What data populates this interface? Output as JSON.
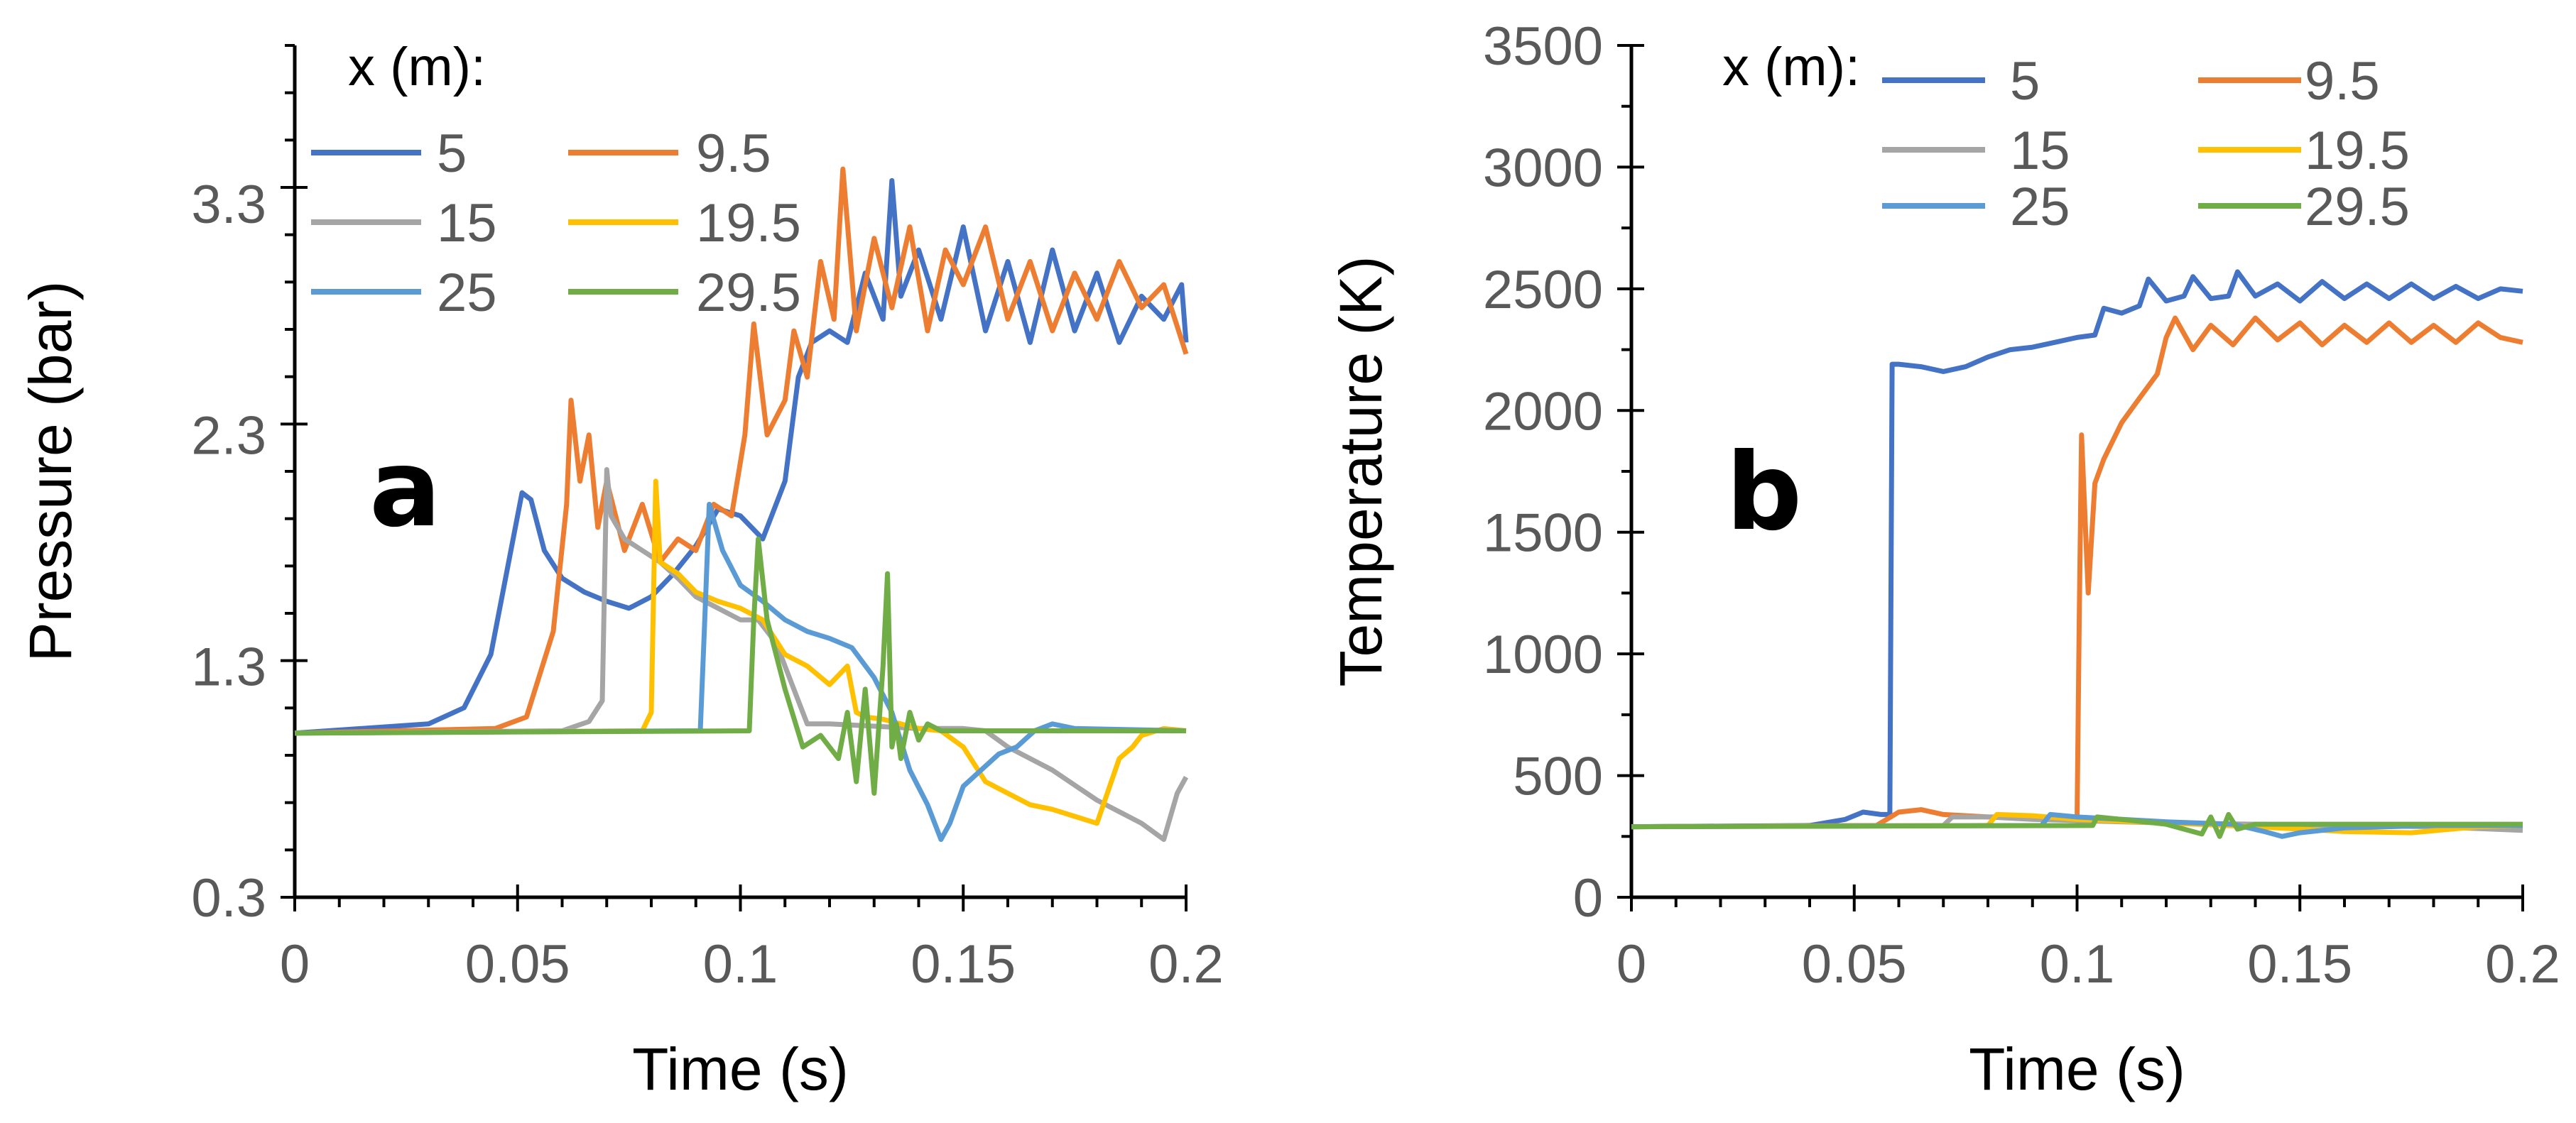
{
  "colors": {
    "axis": "#000000",
    "tick_label": "#595959",
    "series": {
      "5": "#4472C4",
      "9.5": "#ED7D31",
      "15": "#A5A5A5",
      "19.5": "#FFC000",
      "25": "#5B9BD5",
      "29.5": "#70AD47"
    }
  },
  "chart_data": [
    {
      "type": "line",
      "panel_label": "a",
      "title": "",
      "xlabel": "Time (s)",
      "ylabel": "Pressure (bar)",
      "xlim": [
        0,
        0.2
      ],
      "ylim": [
        0.3,
        3.9
      ],
      "x_ticks": [
        "0",
        "0.05",
        "0.1",
        "0.15",
        "0.2"
      ],
      "y_ticks": [
        "0.3",
        "1.3",
        "2.3",
        "3.3"
      ],
      "legend": {
        "title": "x (m):",
        "placement": "top-left",
        "entries": [
          "5",
          "9.5",
          "15",
          "19.5",
          "25",
          "29.5"
        ]
      },
      "series": [
        {
          "name": "5",
          "x": [
            0,
            0.03,
            0.038,
            0.044,
            0.048,
            0.051,
            0.053,
            0.056,
            0.06,
            0.065,
            0.07,
            0.075,
            0.08,
            0.085,
            0.09,
            0.095,
            0.1,
            0.105,
            0.11,
            0.113,
            0.116,
            0.12,
            0.124,
            0.128,
            0.132,
            0.134,
            0.136,
            0.14,
            0.145,
            0.15,
            0.155,
            0.16,
            0.165,
            0.17,
            0.175,
            0.18,
            0.185,
            0.19,
            0.195,
            0.199,
            0.2
          ],
          "values": [
            1.01,
            1.05,
            1.12,
            1.35,
            1.75,
            2.05,
            2.02,
            1.8,
            1.68,
            1.62,
            1.58,
            1.55,
            1.6,
            1.7,
            1.82,
            1.98,
            1.95,
            1.85,
            2.1,
            2.55,
            2.7,
            2.75,
            2.7,
            3.0,
            2.8,
            3.4,
            2.9,
            3.1,
            2.8,
            3.2,
            2.75,
            3.05,
            2.7,
            3.1,
            2.75,
            3.0,
            2.7,
            2.9,
            2.8,
            2.95,
            2.7
          ]
        },
        {
          "name": "9.5",
          "x": [
            0,
            0.045,
            0.052,
            0.058,
            0.061,
            0.062,
            0.064,
            0.066,
            0.068,
            0.07,
            0.074,
            0.078,
            0.082,
            0.086,
            0.09,
            0.094,
            0.098,
            0.101,
            0.103,
            0.106,
            0.11,
            0.112,
            0.115,
            0.118,
            0.121,
            0.123,
            0.126,
            0.13,
            0.134,
            0.138,
            0.142,
            0.146,
            0.15,
            0.155,
            0.16,
            0.165,
            0.17,
            0.175,
            0.18,
            0.185,
            0.19,
            0.195,
            0.2
          ],
          "values": [
            1.01,
            1.03,
            1.08,
            1.45,
            2.0,
            2.45,
            2.1,
            2.3,
            1.9,
            2.1,
            1.8,
            2.0,
            1.75,
            1.85,
            1.8,
            2.0,
            1.95,
            2.3,
            2.78,
            2.3,
            2.45,
            2.75,
            2.55,
            3.05,
            2.8,
            3.45,
            2.75,
            3.15,
            2.85,
            3.2,
            2.75,
            3.1,
            2.95,
            3.2,
            2.8,
            3.05,
            2.75,
            3.0,
            2.8,
            3.05,
            2.85,
            2.95,
            2.65
          ]
        },
        {
          "name": "15",
          "x": [
            0,
            0.06,
            0.066,
            0.069,
            0.07,
            0.071,
            0.074,
            0.078,
            0.082,
            0.086,
            0.09,
            0.095,
            0.1,
            0.104,
            0.108,
            0.111,
            0.115,
            0.12,
            0.13,
            0.14,
            0.15,
            0.155,
            0.16,
            0.17,
            0.18,
            0.19,
            0.195,
            0.198,
            0.2
          ],
          "values": [
            1.01,
            1.02,
            1.06,
            1.15,
            2.15,
            1.95,
            1.85,
            1.8,
            1.75,
            1.68,
            1.6,
            1.55,
            1.5,
            1.5,
            1.4,
            1.25,
            1.05,
            1.05,
            1.04,
            1.03,
            1.03,
            1.02,
            0.95,
            0.85,
            0.72,
            0.62,
            0.55,
            0.75,
            0.82
          ]
        },
        {
          "name": "19.5",
          "x": [
            0,
            0.078,
            0.08,
            0.081,
            0.082,
            0.086,
            0.09,
            0.095,
            0.1,
            0.105,
            0.11,
            0.115,
            0.12,
            0.124,
            0.126,
            0.128,
            0.132,
            0.136,
            0.14,
            0.145,
            0.15,
            0.155,
            0.16,
            0.165,
            0.17,
            0.175,
            0.18,
            0.185,
            0.188,
            0.19,
            0.195,
            0.2
          ],
          "values": [
            1.01,
            1.02,
            1.1,
            2.1,
            1.75,
            1.7,
            1.62,
            1.58,
            1.55,
            1.5,
            1.35,
            1.3,
            1.22,
            1.3,
            1.1,
            1.08,
            1.07,
            1.05,
            1.03,
            1.02,
            0.95,
            0.8,
            0.75,
            0.7,
            0.68,
            0.65,
            0.62,
            0.9,
            0.95,
            1.0,
            1.03,
            1.02
          ]
        },
        {
          "name": "25",
          "x": [
            0,
            0.091,
            0.092,
            0.093,
            0.096,
            0.1,
            0.105,
            0.11,
            0.115,
            0.12,
            0.125,
            0.13,
            0.134,
            0.138,
            0.142,
            0.145,
            0.147,
            0.15,
            0.154,
            0.158,
            0.162,
            0.166,
            0.17,
            0.175,
            0.2
          ],
          "values": [
            1.01,
            1.02,
            1.5,
            2.0,
            1.8,
            1.65,
            1.58,
            1.5,
            1.45,
            1.42,
            1.38,
            1.25,
            1.1,
            0.85,
            0.7,
            0.55,
            0.62,
            0.78,
            0.85,
            0.92,
            0.95,
            1.02,
            1.05,
            1.03,
            1.02
          ]
        },
        {
          "name": "29.5",
          "x": [
            0,
            0.102,
            0.103,
            0.104,
            0.106,
            0.11,
            0.114,
            0.118,
            0.122,
            0.124,
            0.126,
            0.128,
            0.13,
            0.132,
            0.133,
            0.134,
            0.135,
            0.136,
            0.138,
            0.14,
            0.142,
            0.145,
            0.15,
            0.2
          ],
          "values": [
            1.01,
            1.02,
            1.5,
            1.85,
            1.5,
            1.2,
            0.95,
            1.0,
            0.9,
            1.1,
            0.8,
            1.2,
            0.75,
            1.3,
            1.7,
            0.95,
            1.05,
            0.9,
            1.1,
            0.98,
            1.05,
            1.02,
            1.02,
            1.02
          ]
        }
      ]
    },
    {
      "type": "line",
      "panel_label": "b",
      "title": "",
      "xlabel": "Time (s)",
      "ylabel": "Temperature (K)",
      "xlim": [
        0,
        0.2
      ],
      "ylim": [
        0,
        3500
      ],
      "x_ticks": [
        "0",
        "0.05",
        "0.1",
        "0.15",
        "0.2"
      ],
      "y_ticks": [
        "0",
        "500",
        "1000",
        "1500",
        "2000",
        "2500",
        "3000",
        "3500"
      ],
      "legend": {
        "title": "x (m):",
        "placement": "top-left",
        "entries": [
          "5",
          "9.5",
          "15",
          "19.5",
          "25",
          "29.5"
        ]
      },
      "series": [
        {
          "name": "5",
          "x": [
            0,
            0.04,
            0.048,
            0.052,
            0.056,
            0.058,
            0.0585,
            0.06,
            0.065,
            0.07,
            0.075,
            0.08,
            0.085,
            0.09,
            0.095,
            0.1,
            0.104,
            0.106,
            0.11,
            0.114,
            0.116,
            0.12,
            0.124,
            0.126,
            0.13,
            0.134,
            0.136,
            0.14,
            0.145,
            0.15,
            0.155,
            0.16,
            0.165,
            0.17,
            0.175,
            0.18,
            0.185,
            0.19,
            0.195,
            0.2
          ],
          "values": [
            290,
            295,
            320,
            350,
            340,
            340,
            2190,
            2190,
            2180,
            2160,
            2180,
            2220,
            2250,
            2260,
            2280,
            2300,
            2310,
            2420,
            2400,
            2430,
            2540,
            2450,
            2470,
            2550,
            2460,
            2470,
            2570,
            2470,
            2520,
            2450,
            2530,
            2460,
            2520,
            2460,
            2520,
            2460,
            2510,
            2460,
            2500,
            2490
          ]
        },
        {
          "name": "9.5",
          "x": [
            0,
            0.055,
            0.06,
            0.065,
            0.07,
            0.08,
            0.09,
            0.1,
            0.1005,
            0.101,
            0.1025,
            0.104,
            0.106,
            0.11,
            0.114,
            0.118,
            0.12,
            0.122,
            0.126,
            0.13,
            0.135,
            0.14,
            0.145,
            0.15,
            0.155,
            0.16,
            0.165,
            0.17,
            0.175,
            0.18,
            0.185,
            0.19,
            0.195,
            0.2
          ],
          "values": [
            290,
            295,
            350,
            360,
            340,
            330,
            330,
            320,
            1150,
            1900,
            1250,
            1700,
            1800,
            1950,
            2050,
            2150,
            2300,
            2380,
            2250,
            2350,
            2270,
            2380,
            2290,
            2360,
            2270,
            2350,
            2280,
            2360,
            2280,
            2350,
            2280,
            2360,
            2300,
            2280
          ]
        },
        {
          "name": "15",
          "x": [
            0,
            0.07,
            0.072,
            0.08,
            0.09,
            0.1,
            0.12,
            0.14,
            0.16,
            0.18,
            0.2
          ],
          "values": [
            290,
            295,
            330,
            330,
            320,
            315,
            305,
            300,
            295,
            290,
            275
          ]
        },
        {
          "name": "19.5",
          "x": [
            0,
            0.08,
            0.082,
            0.09,
            0.1,
            0.12,
            0.14,
            0.16,
            0.175,
            0.19,
            0.2
          ],
          "values": [
            290,
            295,
            340,
            335,
            320,
            305,
            290,
            270,
            265,
            290,
            295
          ]
        },
        {
          "name": "25",
          "x": [
            0,
            0.092,
            0.094,
            0.1,
            0.11,
            0.12,
            0.135,
            0.142,
            0.146,
            0.15,
            0.16,
            0.18,
            0.2
          ],
          "values": [
            290,
            295,
            340,
            330,
            320,
            310,
            300,
            270,
            250,
            265,
            285,
            295,
            295
          ]
        },
        {
          "name": "29.5",
          "x": [
            0,
            0.1035,
            0.1045,
            0.11,
            0.12,
            0.128,
            0.13,
            0.132,
            0.134,
            0.136,
            0.14,
            0.2
          ],
          "values": [
            290,
            295,
            330,
            320,
            300,
            260,
            330,
            250,
            340,
            280,
            300,
            300
          ]
        }
      ]
    }
  ]
}
